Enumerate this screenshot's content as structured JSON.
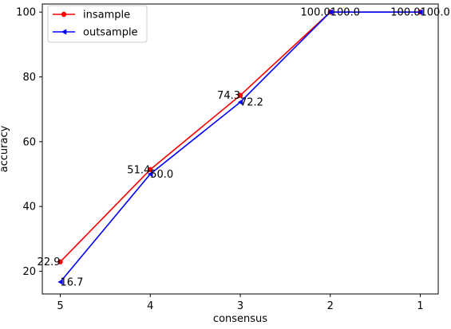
{
  "chart_data": {
    "type": "line",
    "xlabel": "consensus",
    "ylabel": "accuracy",
    "categories": [
      "5",
      "4",
      "3",
      "2",
      "1"
    ],
    "yticks": [
      "20",
      "40",
      "60",
      "80",
      "100"
    ],
    "ylim": [
      13,
      102.5
    ],
    "grid": false,
    "legend_position": "top-left",
    "series": [
      {
        "name": "insample",
        "color": "#ff0000",
        "marker": "circle",
        "values": [
          22.9,
          51.4,
          74.3,
          100.0,
          100.0
        ],
        "labels": [
          "22.9",
          "51.4",
          "74.3",
          "100.0",
          "100.0"
        ]
      },
      {
        "name": "outsample",
        "color": "#0000ff",
        "marker": "triangle-left",
        "values": [
          16.7,
          50.0,
          72.2,
          100.0,
          100.0
        ],
        "labels": [
          "16.7",
          "50.0",
          "72.2",
          "100.0",
          "100.0"
        ]
      }
    ]
  }
}
